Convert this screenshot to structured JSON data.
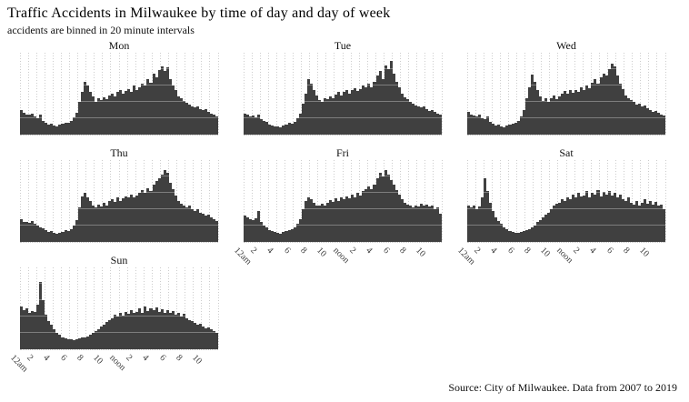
{
  "header": {
    "title": "Traffic Accidents in Milwaukee by time of day and day of week",
    "subtitle": "accidents are binned in 20 minute intervals"
  },
  "source_note": "Source: City of Milwaukee. Data from 2007 to 2019",
  "colors": {
    "bar": "#404040",
    "vgrid": "#cccccc",
    "hgrid_overlay": "rgba(255,255,255,0.32)",
    "text": "#111111"
  },
  "facets": [
    {
      "label": "Mon",
      "axis": false
    },
    {
      "label": "Tue",
      "axis": false
    },
    {
      "label": "Wed",
      "axis": false
    },
    {
      "label": "Thu",
      "axis": false
    },
    {
      "label": "Fri",
      "axis": true
    },
    {
      "label": "Sat",
      "axis": true
    },
    {
      "label": "Sun",
      "axis": true
    }
  ],
  "chart_data": {
    "type": "bar",
    "title": "Traffic Accidents in Milwaukee by time of day and day of week",
    "subtitle": "accidents are binned in 20 minute intervals",
    "caption": "Source: City of Milwaukee. Data from 2007 to 2019",
    "facet_by": "day of week",
    "bin_minutes": 20,
    "bins_per_day": 72,
    "x_range_hours": [
      0,
      24
    ],
    "x_tick_hours": [
      0,
      2,
      4,
      6,
      8,
      10,
      12,
      14,
      16,
      18,
      20,
      22
    ],
    "x_tick_labels": [
      "12am",
      "2",
      "4",
      "6",
      "8",
      "10",
      "noon",
      "2",
      "4",
      "6",
      "8",
      "10"
    ],
    "xlabel": "",
    "ylabel": "",
    "units": "relative bar height, 0-100 (no y-axis labels shown; values estimated from pixels)",
    "ylim": [
      0,
      100
    ],
    "grid": "vertical dotted gridlines each hour; light horizontal rule lines visible through bars at 20/40/60/80%",
    "legend": "none",
    "hgrid_percents": [
      20,
      40,
      60,
      80
    ],
    "series": [
      {
        "name": "Mon",
        "values": [
          30,
          27,
          25,
          24,
          26,
          22,
          20,
          25,
          17,
          14,
          12,
          13,
          11,
          10,
          12,
          13,
          15,
          14,
          17,
          21,
          27,
          40,
          52,
          65,
          60,
          52,
          47,
          40,
          44,
          42,
          46,
          43,
          48,
          50,
          47,
          52,
          54,
          50,
          53,
          56,
          52,
          60,
          55,
          58,
          62,
          60,
          68,
          63,
          74,
          70,
          79,
          83,
          78,
          82,
          68,
          60,
          55,
          47,
          44,
          41,
          39,
          37,
          35,
          33,
          34,
          31,
          30,
          31,
          28,
          26,
          24,
          22
        ]
      },
      {
        "name": "Tue",
        "values": [
          26,
          24,
          22,
          23,
          21,
          25,
          19,
          17,
          16,
          12,
          11,
          10,
          10,
          9,
          11,
          12,
          14,
          13,
          16,
          20,
          26,
          38,
          50,
          68,
          62,
          55,
          48,
          42,
          40,
          44,
          43,
          47,
          45,
          49,
          52,
          48,
          52,
          55,
          50,
          54,
          57,
          53,
          56,
          60,
          58,
          62,
          58,
          65,
          72,
          78,
          68,
          85,
          80,
          90,
          75,
          65,
          58,
          50,
          46,
          43,
          40,
          38,
          36,
          35,
          33,
          34,
          31,
          29,
          30,
          28,
          26,
          25
        ]
      },
      {
        "name": "Wed",
        "values": [
          28,
          25,
          23,
          22,
          24,
          20,
          19,
          22,
          16,
          13,
          11,
          12,
          10,
          9,
          11,
          12,
          13,
          15,
          17,
          22,
          30,
          45,
          58,
          73,
          65,
          55,
          47,
          41,
          44,
          40,
          45,
          48,
          43,
          47,
          50,
          53,
          50,
          54,
          51,
          55,
          52,
          58,
          54,
          60,
          57,
          63,
          68,
          62,
          70,
          75,
          72,
          80,
          87,
          83,
          72,
          62,
          56,
          48,
          45,
          42,
          40,
          37,
          38,
          34,
          36,
          32,
          30,
          28,
          29,
          27,
          25,
          23
        ]
      },
      {
        "name": "Thu",
        "values": [
          28,
          25,
          24,
          23,
          26,
          22,
          20,
          18,
          17,
          14,
          12,
          13,
          11,
          10,
          11,
          12,
          14,
          13,
          16,
          20,
          27,
          42,
          56,
          60,
          55,
          50,
          45,
          42,
          46,
          43,
          48,
          45,
          50,
          52,
          49,
          54,
          50,
          53,
          56,
          54,
          58,
          55,
          57,
          60,
          63,
          60,
          66,
          62,
          70,
          74,
          78,
          82,
          88,
          84,
          72,
          64,
          57,
          50,
          47,
          44,
          42,
          45,
          40,
          38,
          40,
          36,
          34,
          32,
          33,
          30,
          28,
          26
        ]
      },
      {
        "name": "Fri",
        "values": [
          32,
          30,
          28,
          27,
          29,
          38,
          24,
          20,
          18,
          15,
          13,
          12,
          11,
          10,
          12,
          13,
          14,
          16,
          18,
          22,
          28,
          40,
          50,
          55,
          52,
          48,
          45,
          44,
          47,
          45,
          48,
          51,
          49,
          53,
          50,
          55,
          52,
          56,
          53,
          58,
          54,
          60,
          57,
          62,
          65,
          68,
          64,
          70,
          78,
          85,
          80,
          88,
          82,
          76,
          70,
          63,
          58,
          52,
          48,
          46,
          44,
          42,
          45,
          43,
          47,
          44,
          46,
          43,
          45,
          40,
          42,
          35
        ]
      },
      {
        "name": "Sat",
        "values": [
          45,
          42,
          44,
          40,
          43,
          55,
          78,
          62,
          48,
          38,
          30,
          26,
          22,
          18,
          16,
          13,
          12,
          11,
          11,
          12,
          13,
          14,
          16,
          18,
          20,
          24,
          27,
          30,
          33,
          36,
          40,
          44,
          47,
          48,
          52,
          50,
          55,
          52,
          58,
          54,
          60,
          56,
          57,
          62,
          55,
          60,
          58,
          63,
          56,
          61,
          58,
          62,
          57,
          60,
          55,
          58,
          52,
          50,
          54,
          48,
          46,
          50,
          45,
          48,
          52,
          47,
          50,
          46,
          49,
          44,
          46,
          40
        ]
      },
      {
        "name": "Sun",
        "values": [
          52,
          48,
          50,
          45,
          47,
          46,
          55,
          82,
          60,
          42,
          35,
          30,
          24,
          20,
          18,
          15,
          13,
          12,
          12,
          11,
          12,
          13,
          14,
          15,
          16,
          18,
          20,
          22,
          25,
          28,
          30,
          33,
          36,
          38,
          42,
          40,
          44,
          41,
          46,
          43,
          48,
          44,
          46,
          50,
          45,
          52,
          47,
          50,
          48,
          51,
          46,
          49,
          45,
          48,
          44,
          47,
          42,
          45,
          40,
          43,
          38,
          36,
          34,
          32,
          30,
          31,
          28,
          26,
          27,
          24,
          22,
          20
        ]
      }
    ]
  },
  "layout_positions": {
    "cols_left": [
      22,
      268,
      514
    ],
    "rows_top": [
      44,
      162,
      280
    ],
    "cells": [
      {
        "col": 0,
        "row": 0
      },
      {
        "col": 1,
        "row": 0
      },
      {
        "col": 2,
        "row": 0
      },
      {
        "col": 0,
        "row": 1
      },
      {
        "col": 1,
        "row": 1
      },
      {
        "col": 2,
        "row": 1
      },
      {
        "col": 0,
        "row": 2
      }
    ]
  }
}
